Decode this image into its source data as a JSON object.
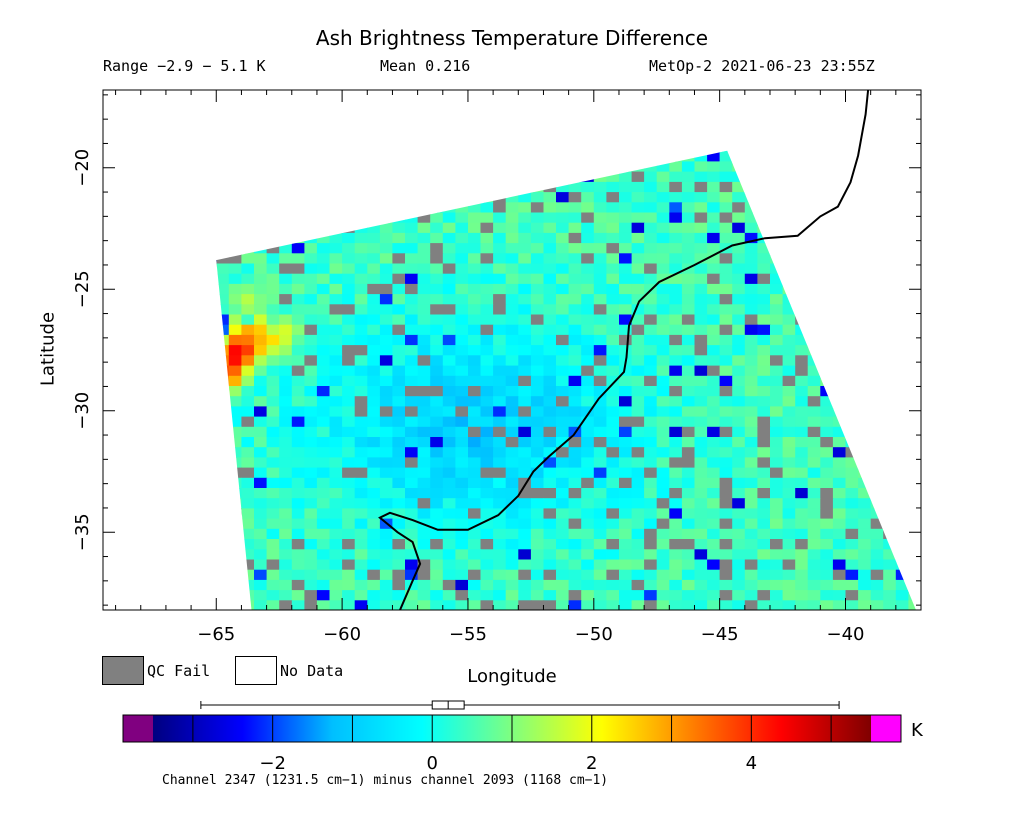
{
  "header": {
    "title": "Ash Brightness Temperature Difference",
    "range": "Range −2.9 − 5.1 K",
    "mean": "Mean 0.216",
    "stamp": "MetOp-2 2021-06-23 23:55Z"
  },
  "legend": {
    "qc_fail": "QC Fail",
    "no_data": "No Data",
    "qc_fail_color": "#808080",
    "no_data_color": "#ffffff"
  },
  "colorbar": {
    "unit": "K",
    "caption": "Channel 2347 (1231.5 cm−1) minus channel 2093 (1168 cm−1)",
    "min": -3.5,
    "max": 5.5,
    "under_color": "#800080",
    "over_color": "#ff00ff",
    "ticks": [
      -2,
      0,
      2,
      4
    ],
    "tick_labels": [
      "−2",
      "0",
      "2",
      "4"
    ],
    "stops": [
      "#000080",
      "#0000ff",
      "#00bfff",
      "#00ffff",
      "#7fff7f",
      "#ffff00",
      "#ff8000",
      "#ff0000",
      "#800000"
    ],
    "boxplot": {
      "min": -2.9,
      "q1": 0.0,
      "median": 0.2,
      "q3": 0.4,
      "max": 5.1
    }
  },
  "chart_data": {
    "type": "heatmap",
    "title": "Ash Brightness Temperature Difference",
    "xlabel": "Longitude",
    "ylabel": "Latitude",
    "xlim": [
      -69.5,
      -37
    ],
    "ylim": [
      -38.2,
      -16.8
    ],
    "xticks": [
      -65,
      -60,
      -55,
      -50,
      -45,
      -40
    ],
    "xtick_labels": [
      "−65",
      "−60",
      "−55",
      "−50",
      "−45",
      "−40"
    ],
    "yticks": [
      -20,
      -25,
      -30,
      -35
    ],
    "ytick_labels": [
      "−20",
      "−25",
      "−30",
      "−35"
    ],
    "swath_corners": {
      "top_left": [
        -65.0,
        -23.8
      ],
      "top_right": [
        -44.7,
        -19.3
      ],
      "bottom_right": [
        -37.2,
        -38.2
      ],
      "bottom_left": [
        -63.6,
        -38.2
      ]
    },
    "value_range": [
      -2.9,
      5.1
    ],
    "mean": 0.216,
    "hotspots": [
      {
        "lon": -64.5,
        "lat": -27.5,
        "value": 5.0
      },
      {
        "lon": -64.0,
        "lat": -27.0,
        "value": 4.5
      },
      {
        "lon": -64.8,
        "lat": -28.3,
        "value": 4.0
      },
      {
        "lon": -63.8,
        "lat": -26.6,
        "value": 3.0
      },
      {
        "lon": -62.8,
        "lat": -26.8,
        "value": 2.5
      },
      {
        "lon": -64.0,
        "lat": -25.3,
        "value": 1.5
      }
    ],
    "coast_lonlat": [
      [
        -39.1,
        -16.8
      ],
      [
        -39.2,
        -17.8
      ],
      [
        -39.5,
        -19.5
      ],
      [
        -39.8,
        -20.6
      ],
      [
        -40.3,
        -21.6
      ],
      [
        -41.0,
        -22.0
      ],
      [
        -41.9,
        -22.8
      ],
      [
        -43.2,
        -22.9
      ],
      [
        -44.5,
        -23.2
      ],
      [
        -46.0,
        -24.0
      ],
      [
        -47.4,
        -24.7
      ],
      [
        -48.2,
        -25.5
      ],
      [
        -48.6,
        -26.5
      ],
      [
        -48.7,
        -27.8
      ],
      [
        -48.8,
        -28.4
      ],
      [
        -49.8,
        -29.5
      ],
      [
        -50.8,
        -31.0
      ],
      [
        -51.8,
        -31.9
      ],
      [
        -52.4,
        -32.5
      ],
      [
        -53.0,
        -33.5
      ],
      [
        -53.8,
        -34.3
      ],
      [
        -55.0,
        -34.9
      ],
      [
        -56.2,
        -34.9
      ],
      [
        -57.2,
        -34.5
      ],
      [
        -58.1,
        -34.2
      ],
      [
        -58.5,
        -34.4
      ],
      [
        -57.8,
        -35.0
      ],
      [
        -57.2,
        -35.4
      ],
      [
        -56.9,
        -36.3
      ],
      [
        -57.2,
        -37.0
      ],
      [
        -57.7,
        -38.2
      ]
    ]
  }
}
